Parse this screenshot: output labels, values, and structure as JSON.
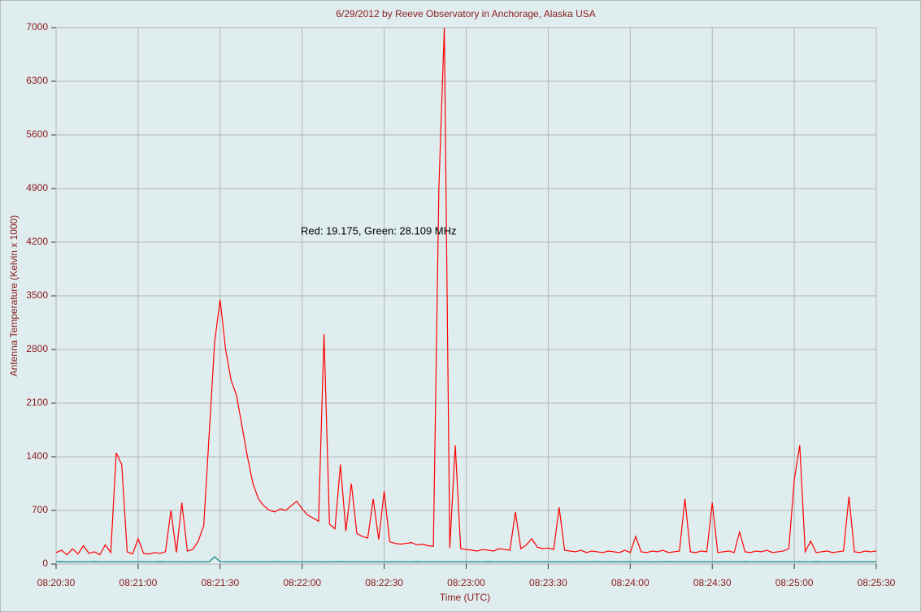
{
  "chart_data": {
    "type": "line",
    "title": "6/29/2012  by  Reeve Observatory  in  Anchorage, Alaska  USA",
    "annotation": "Red: 19.175, Green: 28.109 MHz",
    "x_label": "Time (UTC)",
    "y_label": "Antenna Temperature (Kelvin x 1000)",
    "xlim": [
      "08:20:30",
      "08:25:30"
    ],
    "xticks": [
      "08:20:30",
      "08:21:00",
      "08:21:30",
      "08:22:00",
      "08:22:30",
      "08:23:00",
      "08:23:30",
      "08:24:00",
      "08:24:30",
      "08:25:00",
      "08:25:30"
    ],
    "ylim": [
      0,
      7000
    ],
    "yticks": [
      0,
      700,
      1400,
      2100,
      2800,
      3500,
      4200,
      4900,
      5600,
      6300,
      7000
    ],
    "grid": true,
    "x": [
      "08:20:30",
      "08:20:32",
      "08:20:34",
      "08:20:36",
      "08:20:38",
      "08:20:40",
      "08:20:42",
      "08:20:44",
      "08:20:46",
      "08:20:48",
      "08:20:50",
      "08:20:52",
      "08:20:54",
      "08:20:56",
      "08:20:58",
      "08:21:00",
      "08:21:02",
      "08:21:04",
      "08:21:06",
      "08:21:08",
      "08:21:10",
      "08:21:12",
      "08:21:14",
      "08:21:16",
      "08:21:18",
      "08:21:20",
      "08:21:22",
      "08:21:24",
      "08:21:26",
      "08:21:28",
      "08:21:30",
      "08:21:32",
      "08:21:34",
      "08:21:36",
      "08:21:38",
      "08:21:40",
      "08:21:42",
      "08:21:44",
      "08:21:46",
      "08:21:48",
      "08:21:50",
      "08:21:52",
      "08:21:54",
      "08:21:56",
      "08:21:58",
      "08:22:00",
      "08:22:02",
      "08:22:04",
      "08:22:06",
      "08:22:08",
      "08:22:10",
      "08:22:12",
      "08:22:14",
      "08:22:16",
      "08:22:18",
      "08:22:20",
      "08:22:22",
      "08:22:24",
      "08:22:26",
      "08:22:28",
      "08:22:30",
      "08:22:32",
      "08:22:34",
      "08:22:36",
      "08:22:38",
      "08:22:40",
      "08:22:42",
      "08:22:44",
      "08:22:46",
      "08:22:48",
      "08:22:50",
      "08:22:52",
      "08:22:54",
      "08:22:56",
      "08:22:58",
      "08:23:00",
      "08:23:02",
      "08:23:04",
      "08:23:06",
      "08:23:08",
      "08:23:10",
      "08:23:12",
      "08:23:14",
      "08:23:16",
      "08:23:18",
      "08:23:20",
      "08:23:22",
      "08:23:24",
      "08:23:26",
      "08:23:28",
      "08:23:30",
      "08:23:32",
      "08:23:34",
      "08:23:36",
      "08:23:38",
      "08:23:40",
      "08:23:42",
      "08:23:44",
      "08:23:46",
      "08:23:48",
      "08:23:50",
      "08:23:52",
      "08:23:54",
      "08:23:56",
      "08:23:58",
      "08:24:00",
      "08:24:02",
      "08:24:04",
      "08:24:06",
      "08:24:08",
      "08:24:10",
      "08:24:12",
      "08:24:14",
      "08:24:16",
      "08:24:18",
      "08:24:20",
      "08:24:22",
      "08:24:24",
      "08:24:26",
      "08:24:28",
      "08:24:30",
      "08:24:32",
      "08:24:34",
      "08:24:36",
      "08:24:38",
      "08:24:40",
      "08:24:42",
      "08:24:44",
      "08:24:46",
      "08:24:48",
      "08:24:50",
      "08:24:52",
      "08:24:54",
      "08:24:56",
      "08:24:58",
      "08:25:00",
      "08:25:02",
      "08:25:04",
      "08:25:06",
      "08:25:08",
      "08:25:10",
      "08:25:12",
      "08:25:14",
      "08:25:16",
      "08:25:18",
      "08:25:20",
      "08:25:22",
      "08:25:24",
      "08:25:26",
      "08:25:28",
      "08:25:30"
    ],
    "series": [
      {
        "color": "#ff0000",
        "values": [
          150,
          180,
          120,
          200,
          130,
          240,
          140,
          160,
          120,
          250,
          150,
          1450,
          1300,
          160,
          130,
          330,
          140,
          130,
          150,
          140,
          160,
          700,
          150,
          800,
          170,
          190,
          300,
          500,
          1700,
          2900,
          3450,
          2800,
          2400,
          2200,
          1800,
          1400,
          1050,
          850,
          760,
          700,
          680,
          720,
          700,
          760,
          820,
          720,
          640,
          600,
          560,
          3000,
          520,
          460,
          1300,
          430,
          1050,
          400,
          360,
          340,
          850,
          320,
          950,
          290,
          270,
          260,
          270,
          280,
          250,
          260,
          240,
          230,
          4900,
          7000,
          210,
          1550,
          200,
          190,
          180,
          170,
          190,
          180,
          170,
          200,
          190,
          180,
          680,
          200,
          250,
          330,
          220,
          200,
          210,
          190,
          740,
          180,
          170,
          160,
          180,
          150,
          170,
          160,
          150,
          170,
          160,
          150,
          180,
          150,
          360,
          160,
          150,
          170,
          160,
          180,
          150,
          160,
          170,
          850,
          160,
          150,
          170,
          160,
          800,
          150,
          160,
          170,
          150,
          420,
          160,
          150,
          170,
          160,
          180,
          150,
          160,
          170,
          200,
          1100,
          1550,
          160,
          300,
          150,
          160,
          170,
          150,
          160,
          170,
          880,
          160,
          150,
          170,
          160,
          170
        ]
      },
      {
        "color": "#008080",
        "values": [
          30,
          32,
          28,
          30,
          31,
          29,
          30,
          32,
          30,
          28,
          31,
          30,
          29,
          30,
          31,
          30,
          31,
          29,
          30,
          32,
          30,
          29,
          31,
          30,
          28,
          31,
          30,
          29,
          30,
          95,
          31,
          30,
          29,
          31,
          30,
          28,
          30,
          31,
          29,
          30,
          32,
          30,
          29,
          31,
          30,
          30,
          29,
          31,
          30,
          28,
          31,
          30,
          32,
          29,
          30,
          31,
          30,
          29,
          30,
          31,
          30,
          28,
          31,
          30,
          29,
          30,
          32,
          30,
          29,
          31,
          30,
          29,
          30,
          31,
          30,
          30,
          31,
          29,
          30,
          32,
          30,
          29,
          31,
          30,
          28,
          31,
          30,
          29,
          30,
          31,
          30,
          29,
          31,
          30,
          28,
          30,
          31,
          29,
          30,
          32,
          30,
          29,
          31,
          30,
          29,
          30,
          29,
          31,
          30,
          28,
          31,
          30,
          32,
          29,
          30,
          31,
          30,
          29,
          30,
          31,
          30,
          28,
          31,
          30,
          29,
          30,
          32,
          30,
          29,
          31,
          30,
          29,
          30,
          31,
          30,
          30,
          31,
          29,
          30,
          32,
          30,
          29,
          31,
          30,
          28,
          31,
          30,
          29,
          30,
          31,
          30
        ]
      }
    ]
  }
}
